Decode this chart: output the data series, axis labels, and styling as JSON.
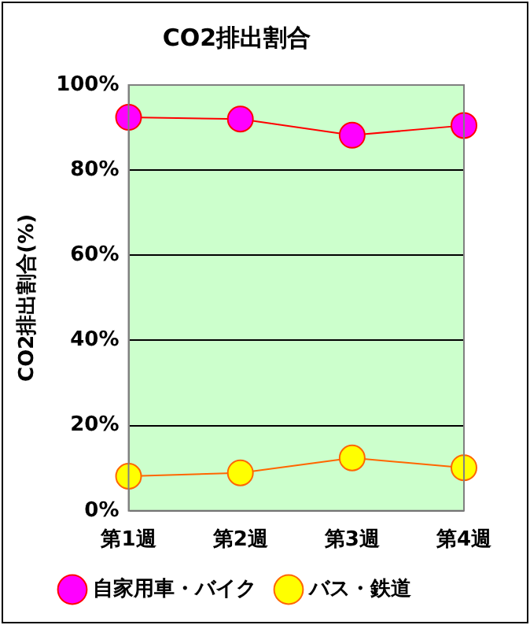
{
  "chart_data": {
    "type": "line",
    "title": "CO2排出割合",
    "ylabel": "CO2排出割合(%)",
    "categories": [
      "第1週",
      "第2週",
      "第3週",
      "第4週"
    ],
    "series": [
      {
        "name": "自家用車・バイク",
        "color": "#ff00ff",
        "values": [
          92.4,
          92,
          88.2,
          90.5
        ]
      },
      {
        "name": "バス・鉄道",
        "color": "#ffff00",
        "values": [
          8.1,
          8.9,
          12.4,
          10.1
        ]
      }
    ],
    "ylim": [
      0,
      100
    ],
    "yticks": [
      {
        "value": 0,
        "label": "0%"
      },
      {
        "value": 20,
        "label": "20%"
      },
      {
        "value": 40,
        "label": "40%"
      },
      {
        "value": 60,
        "label": "60%"
      },
      {
        "value": 80,
        "label": "80%"
      },
      {
        "value": 100,
        "label": "100%"
      }
    ],
    "grid": "y",
    "legend": "bottom",
    "marker": "circle"
  }
}
